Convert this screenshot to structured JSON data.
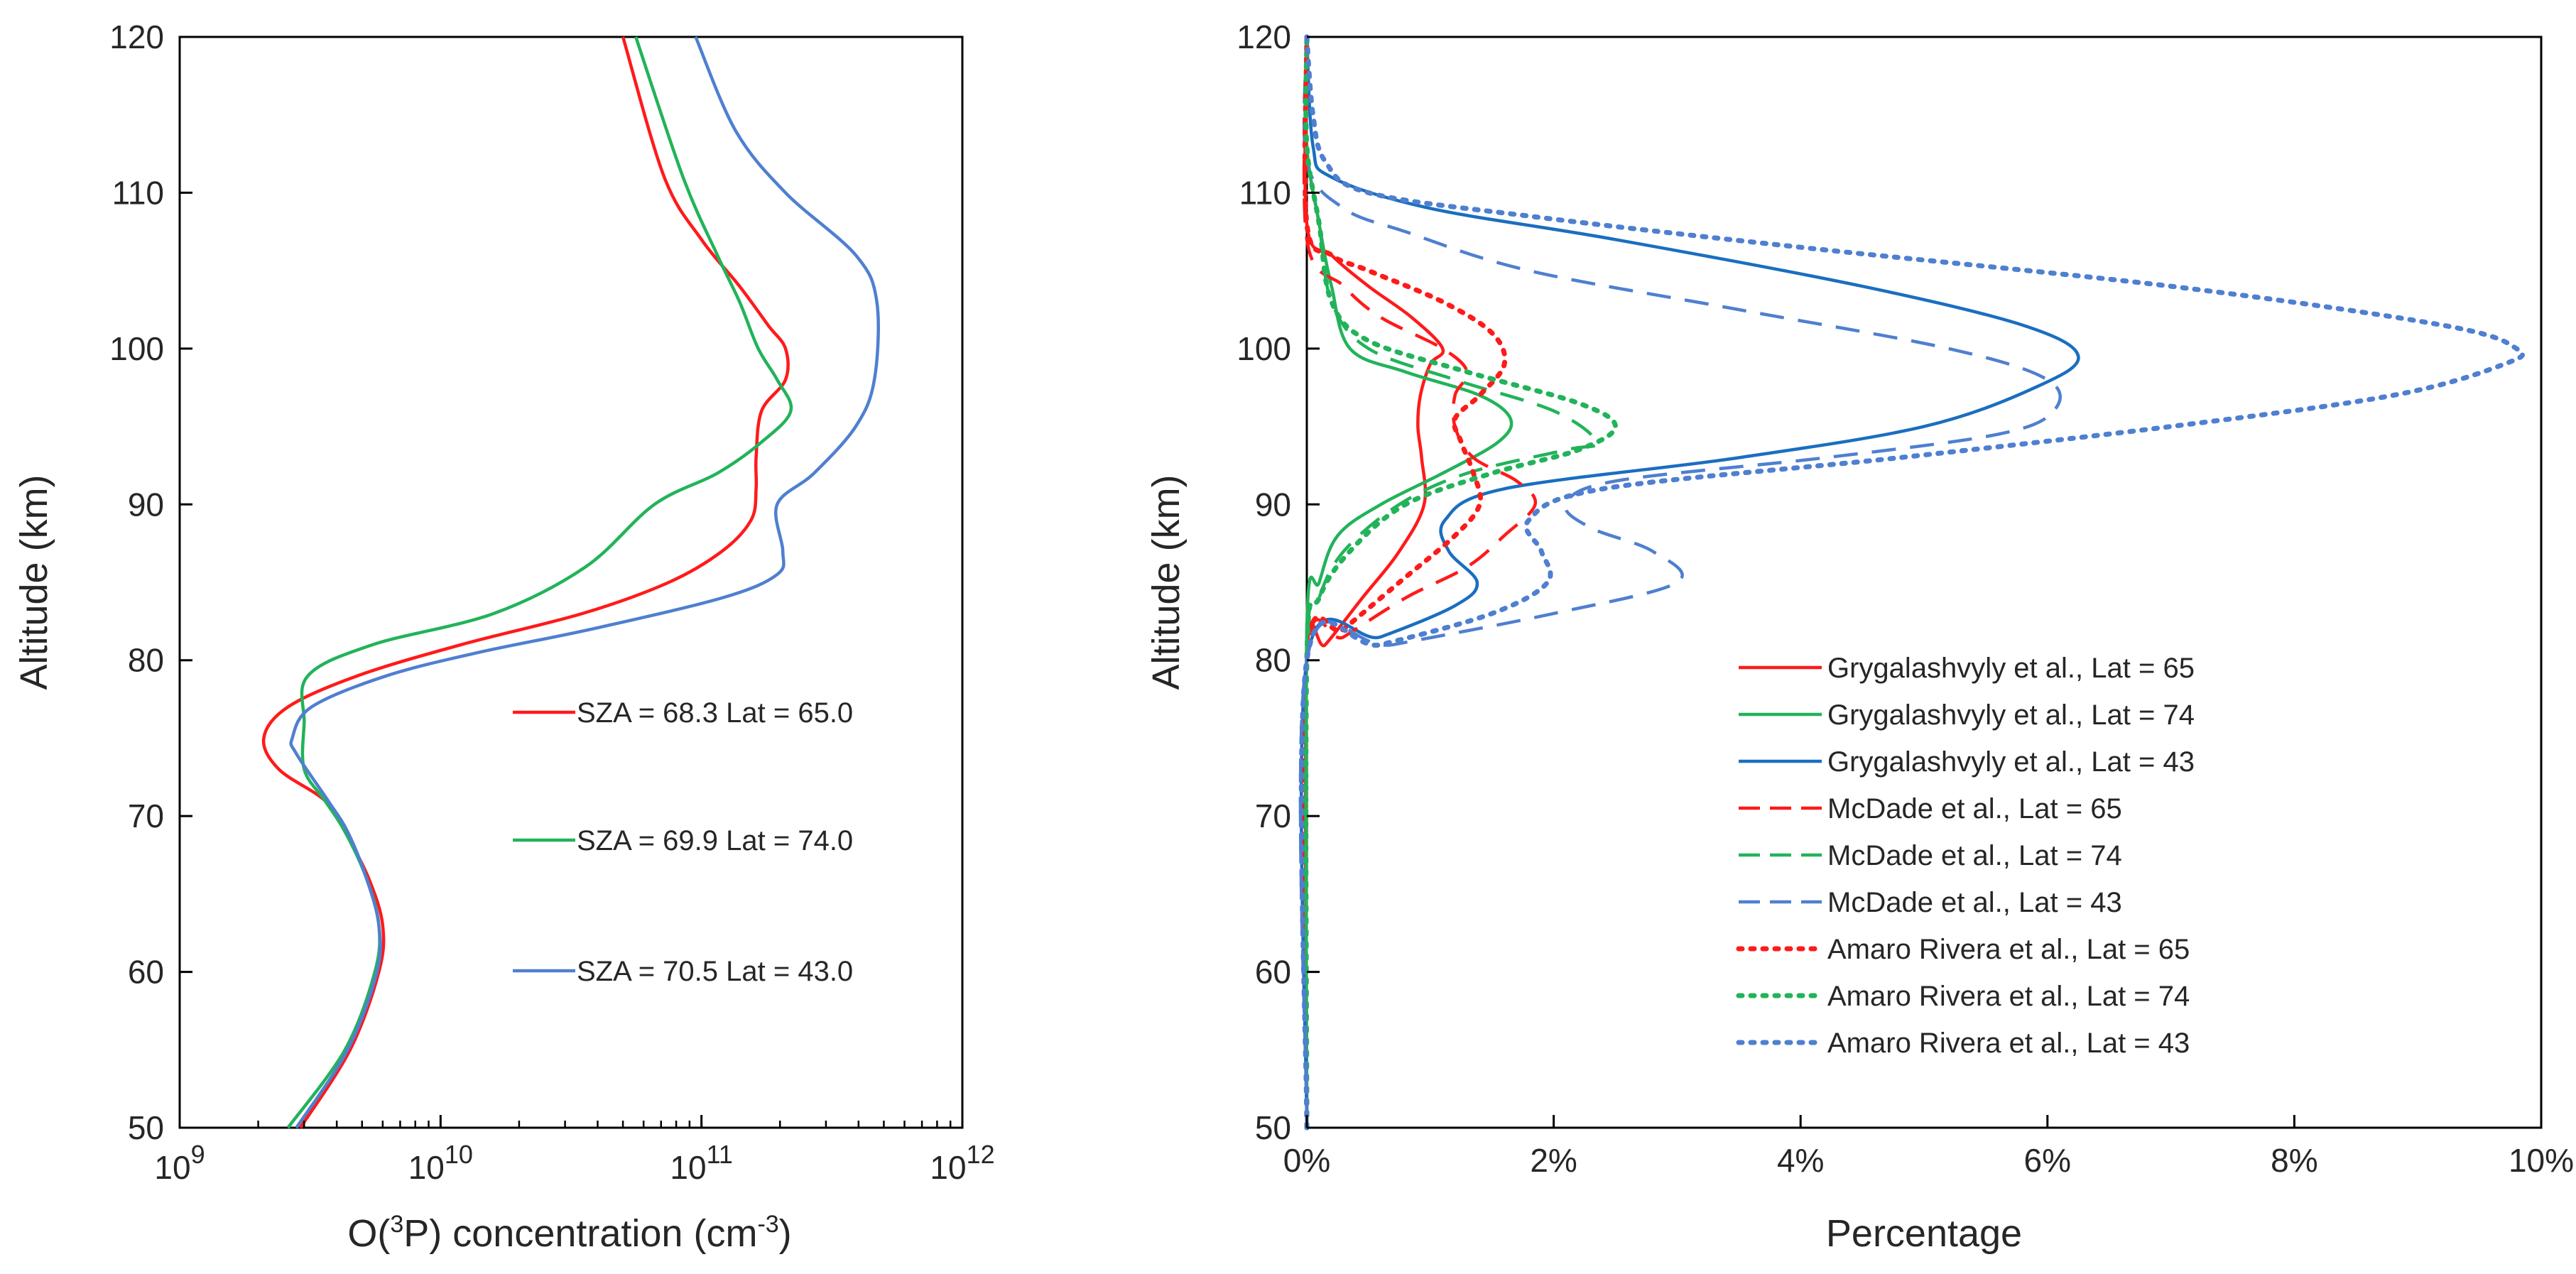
{
  "chart_data": [
    {
      "type": "line",
      "xlabel_parts": [
        "O(",
        "3",
        "P) concentration (cm",
        "-3",
        ")"
      ],
      "ylabel": "Altitude (km)",
      "xscale": "log",
      "xlim": [
        1000000000.0,
        1000000000000.0
      ],
      "ylim": [
        50,
        120
      ],
      "xticks": [
        {
          "base": "10",
          "exp": "9",
          "value": 1000000000.0
        },
        {
          "base": "10",
          "exp": "10",
          "value": 10000000000.0
        },
        {
          "base": "10",
          "exp": "11",
          "value": 100000000000.0
        },
        {
          "base": "10",
          "exp": "12",
          "value": 1000000000000.0
        }
      ],
      "yticks": [
        "50",
        "60",
        "70",
        "80",
        "90",
        "100",
        "110",
        "120"
      ],
      "grid": false,
      "series": [
        {
          "name": "SZA = 68.3 Lat = 65.0",
          "color": "#ff1a1a",
          "points": [
            [
              2900000000.0,
              50
            ],
            [
              4500000000.0,
              55
            ],
            [
              5800000000.0,
              60
            ],
            [
              6000000000.0,
              63
            ],
            [
              5300000000.0,
              66
            ],
            [
              4300000000.0,
              69
            ],
            [
              3600000000.0,
              71
            ],
            [
              2400000000.0,
              73
            ],
            [
              2100000000.0,
              75
            ],
            [
              2600000000.0,
              77
            ],
            [
              4800000000.0,
              79
            ],
            [
              12000000000.0,
              81
            ],
            [
              35000000000.0,
              83
            ],
            [
              75000000000.0,
              85
            ],
            [
              120000000000.0,
              87
            ],
            [
              155000000000.0,
              89
            ],
            [
              162000000000.0,
              91
            ],
            [
              162000000000.0,
              93
            ],
            [
              170000000000.0,
              96
            ],
            [
              210000000000.0,
              98
            ],
            [
              210000000000.0,
              100
            ],
            [
              180000000000.0,
              101.5
            ],
            [
              140000000000.0,
              104
            ],
            [
              100000000000.0,
              107
            ],
            [
              72000000000.0,
              111
            ],
            [
              50000000000.0,
              120
            ]
          ]
        },
        {
          "name": "SZA = 69.9 Lat = 74.0",
          "color": "#22b35a",
          "points": [
            [
              2600000000.0,
              50
            ],
            [
              4300000000.0,
              55
            ],
            [
              5600000000.0,
              60
            ],
            [
              5800000000.0,
              63
            ],
            [
              5200000000.0,
              66
            ],
            [
              4300000000.0,
              69
            ],
            [
              3600000000.0,
              71
            ],
            [
              3000000000.0,
              73
            ],
            [
              3000000000.0,
              76
            ],
            [
              3100000000.0,
              79
            ],
            [
              5500000000.0,
              81
            ],
            [
              16000000000.0,
              83
            ],
            [
              36000000000.0,
              86
            ],
            [
              66000000000.0,
              90
            ],
            [
              115000000000.0,
              92
            ],
            [
              170000000000.0,
              94
            ],
            [
              220000000000.0,
              96
            ],
            [
              195000000000.0,
              98
            ],
            [
              165000000000.0,
              100
            ],
            [
              140000000000.0,
              103
            ],
            [
              115000000000.0,
              106
            ],
            [
              85000000000.0,
              111
            ],
            [
              56000000000.0,
              120
            ]
          ]
        },
        {
          "name": "SZA = 70.5 Lat = 43.0",
          "color": "#4f7fd0",
          "points": [
            [
              2800000000.0,
              50
            ],
            [
              4400000000.0,
              55
            ],
            [
              5700000000.0,
              60
            ],
            [
              5800000000.0,
              63
            ],
            [
              5200000000.0,
              66
            ],
            [
              4400000000.0,
              69
            ],
            [
              3700000000.0,
              71
            ],
            [
              2800000000.0,
              74
            ],
            [
              2700000000.0,
              75
            ],
            [
              3200000000.0,
              77
            ],
            [
              6200000000.0,
              79
            ],
            [
              14000000000.0,
              80.5
            ],
            [
              38000000000.0,
              82
            ],
            [
              120000000000.0,
              84
            ],
            [
              195000000000.0,
              85.5
            ],
            [
              205000000000.0,
              87
            ],
            [
              195000000000.0,
              90
            ],
            [
              270000000000.0,
              92
            ],
            [
              390000000000.0,
              95
            ],
            [
              460000000000.0,
              98
            ],
            [
              470000000000.0,
              103
            ],
            [
              390000000000.0,
              106
            ],
            [
              210000000000.0,
              110
            ],
            [
              135000000000.0,
              114
            ],
            [
              95000000000.0,
              120
            ]
          ]
        }
      ],
      "annotations": [
        "SZA = 68.3 Lat = 65.0",
        "SZA = 69.9 Lat = 74.0",
        "SZA = 70.5 Lat = 43.0"
      ]
    },
    {
      "type": "line",
      "xlabel": "Percentage",
      "ylabel": "Altitude (km)",
      "xlim": [
        0,
        10
      ],
      "ylim": [
        50,
        120
      ],
      "xticks": [
        "0%",
        "2%",
        "4%",
        "6%",
        "8%",
        "10%"
      ],
      "yticks": [
        "50",
        "60",
        "70",
        "80",
        "90",
        "100",
        "110",
        "120"
      ],
      "grid": false,
      "legend_position": "lower-right",
      "series": [
        {
          "name": "Grygalashvyly et al., Lat = 65",
          "color": "#ff1a1a",
          "dash": "solid",
          "points": [
            [
              0,
              50
            ],
            [
              0,
              80
            ],
            [
              0.15,
              81
            ],
            [
              0.45,
              84
            ],
            [
              0.75,
              87
            ],
            [
              0.95,
              90
            ],
            [
              0.93,
              93
            ],
            [
              0.9,
              95
            ],
            [
              0.92,
              97
            ],
            [
              1.0,
              99
            ],
            [
              1.1,
              100
            ],
            [
              0.85,
              102
            ],
            [
              0.5,
              104
            ],
            [
              0.2,
              106
            ],
            [
              0,
              108
            ],
            [
              0,
              120
            ]
          ]
        },
        {
          "name": "Grygalashvyly et al., Lat = 74",
          "color": "#22b35a",
          "dash": "solid",
          "points": [
            [
              0,
              50
            ],
            [
              0,
              82
            ],
            [
              0.1,
              85
            ],
            [
              0.25,
              88
            ],
            [
              0.6,
              90
            ],
            [
              1.1,
              92
            ],
            [
              1.55,
              94
            ],
            [
              1.65,
              95.5
            ],
            [
              1.4,
              97
            ],
            [
              0.8,
              98.5
            ],
            [
              0.35,
              100
            ],
            [
              0.2,
              104
            ],
            [
              0.1,
              108
            ],
            [
              0,
              113
            ],
            [
              0,
              120
            ]
          ]
        },
        {
          "name": "Grygalashvyly et al., Lat = 43",
          "color": "#1a6ec0",
          "dash": "solid",
          "points": [
            [
              0,
              50
            ],
            [
              0,
              80
            ],
            [
              0.6,
              81.5
            ],
            [
              1.2,
              83.5
            ],
            [
              1.38,
              85
            ],
            [
              1.15,
              87
            ],
            [
              1.12,
              89
            ],
            [
              1.6,
              91
            ],
            [
              3.5,
              93
            ],
            [
              5.0,
              95
            ],
            [
              5.9,
              97.5
            ],
            [
              6.25,
              99.5
            ],
            [
              5.8,
              101.5
            ],
            [
              4.5,
              104
            ],
            [
              2.5,
              107
            ],
            [
              1.0,
              109
            ],
            [
              0.2,
              111
            ],
            [
              0.05,
              113
            ],
            [
              0,
              120
            ]
          ]
        },
        {
          "name": "McDade et al., Lat = 65",
          "color": "#ff1a1a",
          "dash": "long",
          "points": [
            [
              0,
              50
            ],
            [
              0,
              80
            ],
            [
              0.3,
              81.5
            ],
            [
              0.8,
              84
            ],
            [
              1.3,
              86
            ],
            [
              1.6,
              88
            ],
            [
              1.85,
              90
            ],
            [
              1.7,
              91.5
            ],
            [
              1.35,
              93
            ],
            [
              1.2,
              95
            ],
            [
              1.2,
              97
            ],
            [
              1.3,
              98.5
            ],
            [
              1.1,
              100
            ],
            [
              0.6,
              102
            ],
            [
              0.3,
              104
            ],
            [
              0,
              107
            ],
            [
              0,
              120
            ]
          ]
        },
        {
          "name": "McDade et al., Lat = 74",
          "color": "#22b35a",
          "dash": "long",
          "points": [
            [
              0,
              50
            ],
            [
              0,
              80
            ],
            [
              0.1,
              84
            ],
            [
              0.3,
              87
            ],
            [
              0.75,
              90
            ],
            [
              1.3,
              92
            ],
            [
              2.1,
              93.5
            ],
            [
              2.35,
              94
            ],
            [
              2.0,
              96
            ],
            [
              1.2,
              98
            ],
            [
              0.5,
              100
            ],
            [
              0.2,
              103
            ],
            [
              0.1,
              108
            ],
            [
              0,
              113
            ],
            [
              0,
              120
            ]
          ]
        },
        {
          "name": "McDade et al., Lat = 43",
          "color": "#4f7fd0",
          "dash": "long",
          "points": [
            [
              0,
              50
            ],
            [
              0,
              80
            ],
            [
              0.7,
              81
            ],
            [
              2.0,
              83
            ],
            [
              3.0,
              85
            ],
            [
              2.8,
              87
            ],
            [
              2.3,
              88.5
            ],
            [
              2.1,
              90
            ],
            [
              2.5,
              91.5
            ],
            [
              4.2,
              93
            ],
            [
              5.6,
              94.5
            ],
            [
              6.05,
              96
            ],
            [
              6.0,
              98
            ],
            [
              5.2,
              100
            ],
            [
              3.5,
              102.5
            ],
            [
              1.8,
              105
            ],
            [
              0.8,
              107.5
            ],
            [
              0.3,
              109
            ],
            [
              0,
              112
            ],
            [
              0,
              120
            ]
          ]
        },
        {
          "name": "Amaro Rivera et al., Lat = 65",
          "color": "#ff1a1a",
          "dash": "dot",
          "points": [
            [
              0,
              50
            ],
            [
              0,
              80
            ],
            [
              0.3,
              82
            ],
            [
              0.75,
              85
            ],
            [
              1.2,
              88
            ],
            [
              1.4,
              90
            ],
            [
              1.35,
              92
            ],
            [
              1.25,
              94
            ],
            [
              1.2,
              95.5
            ],
            [
              1.4,
              97
            ],
            [
              1.6,
              99
            ],
            [
              1.5,
              101
            ],
            [
              1.1,
              103
            ],
            [
              0.5,
              105
            ],
            [
              0.2,
              106
            ],
            [
              0,
              108
            ],
            [
              0,
              120
            ]
          ]
        },
        {
          "name": "Amaro Rivera et al., Lat = 74",
          "color": "#22b35a",
          "dash": "dot",
          "points": [
            [
              0,
              50
            ],
            [
              0,
              80
            ],
            [
              0.1,
              84
            ],
            [
              0.35,
              87
            ],
            [
              0.8,
              90
            ],
            [
              1.5,
              92
            ],
            [
              2.2,
              93.5
            ],
            [
              2.5,
              95
            ],
            [
              2.2,
              96.5
            ],
            [
              1.3,
              98.5
            ],
            [
              0.5,
              100.5
            ],
            [
              0.2,
              103
            ],
            [
              0.1,
              108
            ],
            [
              0,
              113
            ],
            [
              0,
              120
            ]
          ]
        },
        {
          "name": "Amaro Rivera et al., Lat = 43",
          "color": "#4f7fd0",
          "dash": "dot",
          "points": [
            [
              0,
              50
            ],
            [
              0,
              80
            ],
            [
              0.6,
              81
            ],
            [
              1.5,
              83
            ],
            [
              1.95,
              85
            ],
            [
              1.9,
              87
            ],
            [
              1.8,
              89
            ],
            [
              2.4,
              91
            ],
            [
              4.8,
              93
            ],
            [
              7.0,
              95
            ],
            [
              8.8,
              97
            ],
            [
              9.7,
              99
            ],
            [
              9.8,
              100
            ],
            [
              9.2,
              101.5
            ],
            [
              7.0,
              104
            ],
            [
              4.0,
              106.5
            ],
            [
              1.8,
              108.5
            ],
            [
              0.5,
              110
            ],
            [
              0.15,
              112
            ],
            [
              0.05,
              115
            ],
            [
              0,
              120
            ]
          ]
        }
      ]
    }
  ]
}
